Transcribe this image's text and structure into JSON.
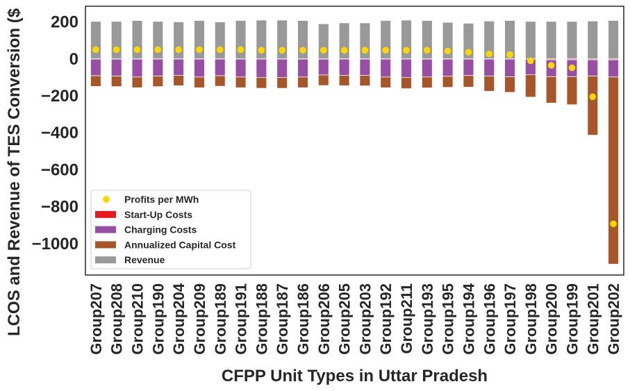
{
  "chart_data": {
    "type": "bar",
    "stacked": true,
    "xlabel": "CFPP Unit Types in Uttar Pradesh",
    "ylabel": "LCOS and Revenue of TES Conversion ($",
    "ylim": [
      -1170,
      285
    ],
    "yticks": [
      200,
      0,
      -200,
      -400,
      -600,
      -800,
      -1000
    ],
    "ytick_labels": [
      "200",
      "0",
      "−200",
      "−400",
      "−600",
      "−800",
      "−1000"
    ],
    "grid": false,
    "legend_position": "lower-left",
    "categories": [
      "Group207",
      "Group208",
      "Group210",
      "Group190",
      "Group204",
      "Group209",
      "Group189",
      "Group191",
      "Group188",
      "Group187",
      "Group186",
      "Group206",
      "Group205",
      "Group203",
      "Group192",
      "Group211",
      "Group193",
      "Group195",
      "Group194",
      "Group196",
      "Group197",
      "Group198",
      "Group200",
      "Group199",
      "Group201",
      "Group202"
    ],
    "series": [
      {
        "name": "Revenue",
        "kind": "bar",
        "color": "#999999",
        "values": [
          203,
          203,
          208,
          203,
          200,
          208,
          200,
          208,
          210,
          210,
          208,
          190,
          195,
          195,
          208,
          210,
          208,
          198,
          193,
          205,
          208,
          203,
          203,
          203,
          205,
          208
        ]
      },
      {
        "name": "Start-Up Costs",
        "kind": "bar",
        "color": "#e41a1c",
        "values": [
          -1,
          -1,
          -1,
          -1,
          -1,
          -1,
          -1,
          -1,
          -1,
          -1,
          -1,
          -1,
          -1,
          -1,
          -1,
          -1,
          -1,
          -1,
          -1,
          -1,
          -1,
          -1,
          -5,
          -5,
          -5,
          -5
        ]
      },
      {
        "name": "Charging Costs",
        "kind": "bar",
        "color": "#984ea3",
        "values": [
          -90,
          -92,
          -97,
          -92,
          -88,
          -97,
          -90,
          -97,
          -99,
          -99,
          -97,
          -86,
          -88,
          -88,
          -97,
          -99,
          -97,
          -93,
          -89,
          -92,
          -96,
          -84,
          -91,
          -91,
          -88,
          -93
        ]
      },
      {
        "name": "Annualized Capital Cost",
        "kind": "bar",
        "color": "#a65628",
        "values": [
          -58,
          -57,
          -58,
          -57,
          -56,
          -58,
          -57,
          -58,
          -59,
          -59,
          -58,
          -57,
          -56,
          -57,
          -58,
          -61,
          -59,
          -60,
          -63,
          -82,
          -84,
          -122,
          -143,
          -152,
          -320,
          -1013
        ]
      },
      {
        "name": "Profits per MWh",
        "kind": "scatter",
        "color": "#ffd700",
        "values": [
          50,
          50,
          50,
          50,
          50,
          50,
          50,
          50,
          47,
          47,
          47,
          47,
          47,
          47,
          47,
          47,
          47,
          43,
          36,
          27,
          23,
          -10,
          -35,
          -48,
          -205,
          -893
        ]
      }
    ]
  }
}
